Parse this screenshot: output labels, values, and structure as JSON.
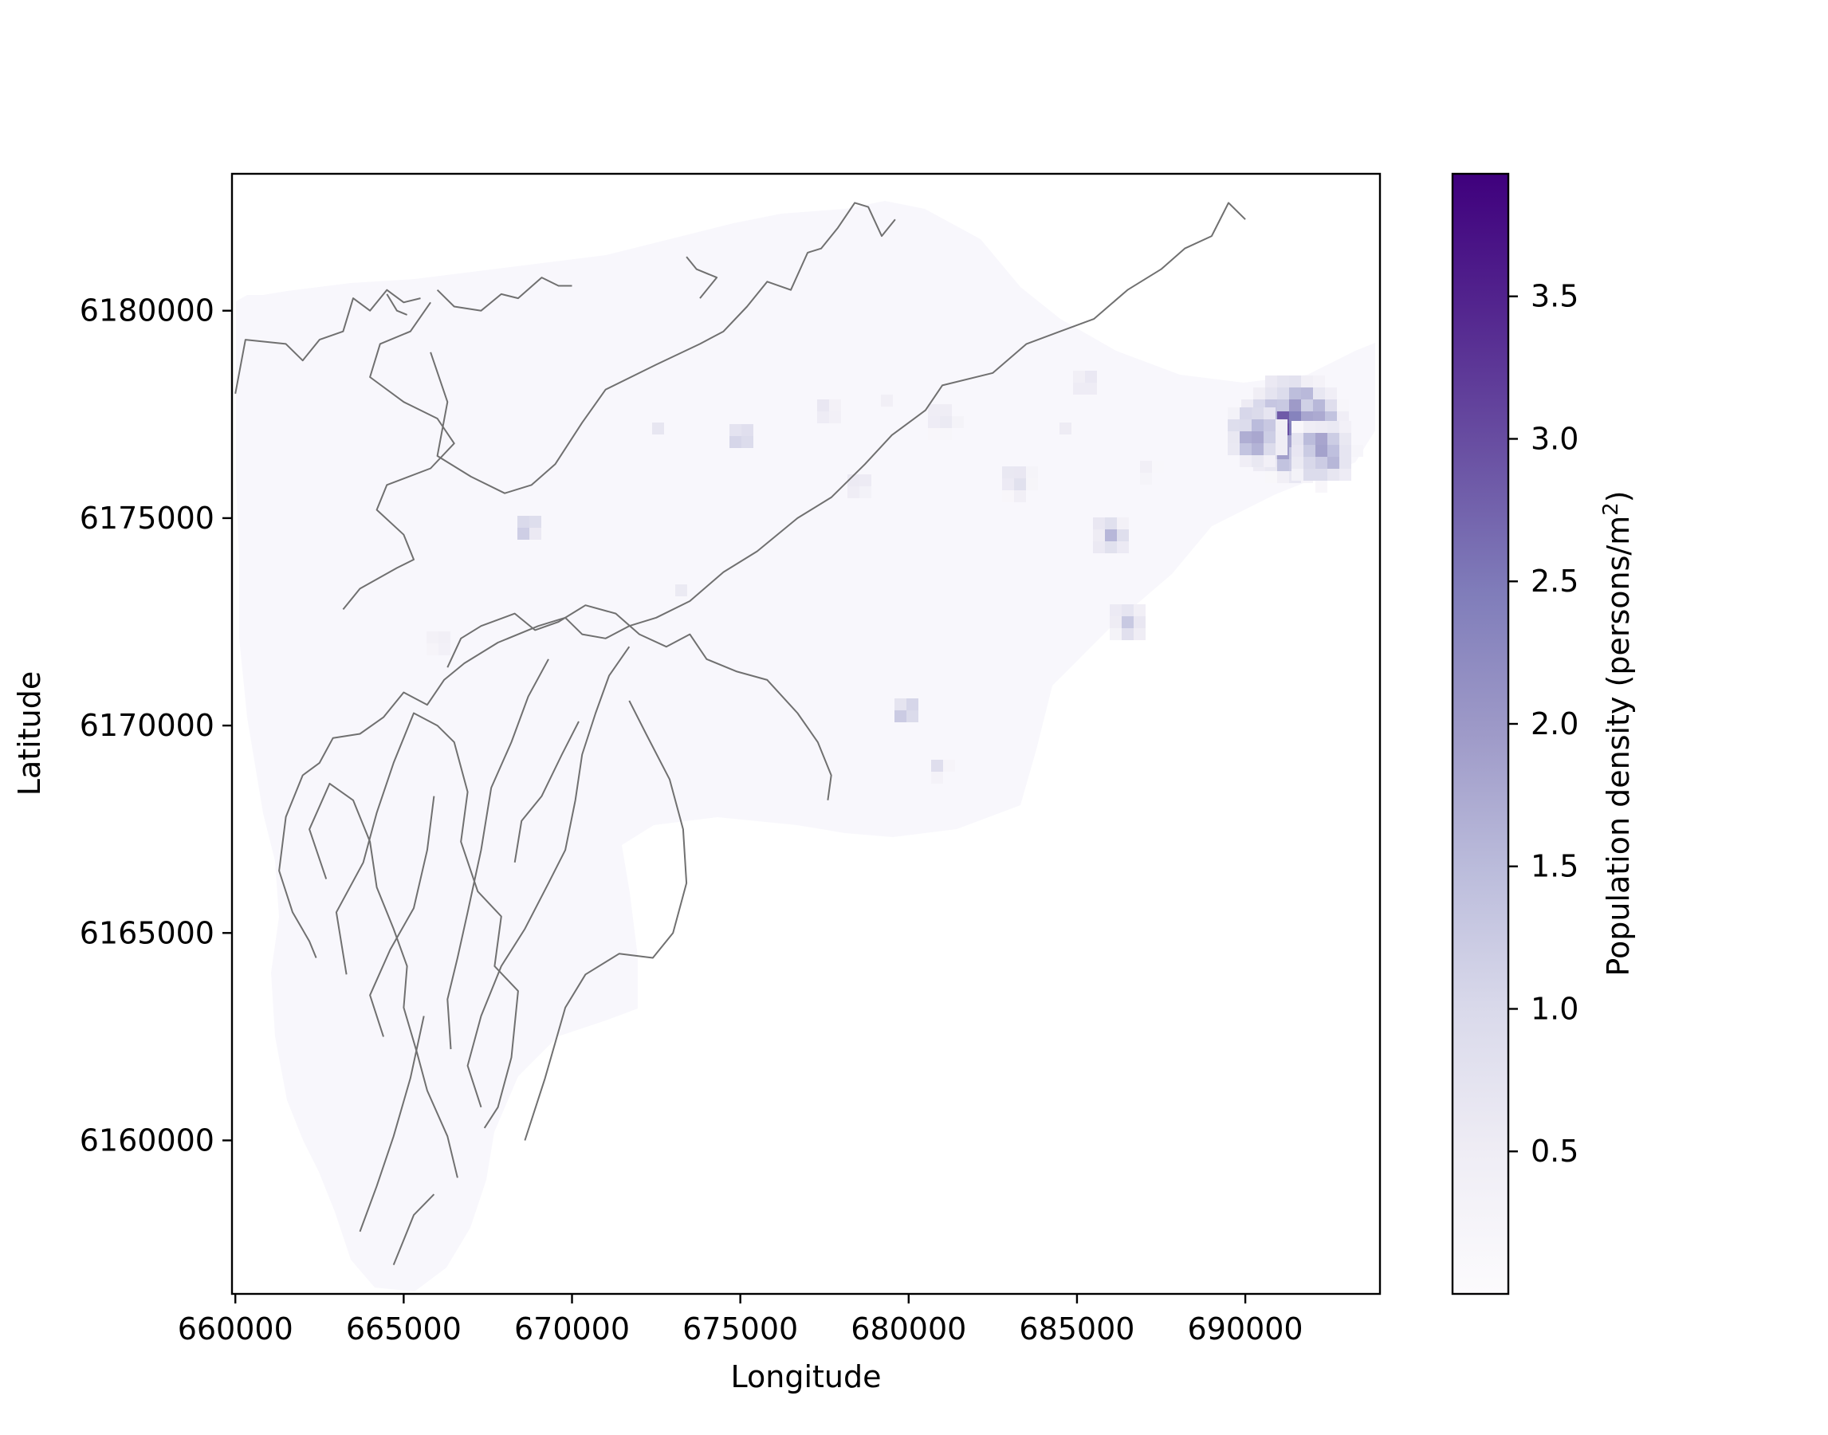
{
  "chart_data": {
    "type": "heatmap",
    "title": "",
    "xlabel": "Longitude",
    "ylabel": "Latitude",
    "xlim": [
      659900,
      694000
    ],
    "ylim": [
      6156300,
      6183300
    ],
    "x_ticks": [
      660000,
      665000,
      670000,
      675000,
      680000,
      685000,
      690000
    ],
    "x_tick_labels": [
      "660000",
      "665000",
      "670000",
      "675000",
      "680000",
      "685000",
      "690000"
    ],
    "y_ticks": [
      6160000,
      6165000,
      6170000,
      6175000,
      6180000
    ],
    "y_tick_labels": [
      "6160000",
      "6165000",
      "6170000",
      "6175000",
      "6180000"
    ],
    "grid": false,
    "colorbar": {
      "label_prefix": "Population density (persons/m",
      "label_sup": "2",
      "label_suffix": ")",
      "vmin": 0.0,
      "vmax": 3.93,
      "colormap": "Purples",
      "ticks": [
        0.5,
        1.0,
        1.5,
        2.0,
        2.5,
        3.0,
        3.5
      ],
      "tick_labels": [
        "0.5",
        "1.0",
        "1.5",
        "2.0",
        "2.5",
        "3.0",
        "3.5"
      ],
      "color_low": "#fcfbfd",
      "color_high": "#3f007d"
    },
    "density_hotspots": [
      {
        "x": 691400,
        "y": 6177200,
        "value": 3.2,
        "radius": 1700
      },
      {
        "x": 690300,
        "y": 6177000,
        "value": 2.5,
        "radius": 1000
      },
      {
        "x": 692300,
        "y": 6176600,
        "value": 2.4,
        "radius": 1100
      },
      {
        "x": 668700,
        "y": 6174800,
        "value": 2.0,
        "radius": 500
      },
      {
        "x": 675000,
        "y": 6177000,
        "value": 1.7,
        "radius": 500
      },
      {
        "x": 679900,
        "y": 6170400,
        "value": 1.9,
        "radius": 500
      },
      {
        "x": 686000,
        "y": 6174600,
        "value": 1.5,
        "radius": 700
      },
      {
        "x": 686500,
        "y": 6172500,
        "value": 1.4,
        "radius": 700
      },
      {
        "x": 683200,
        "y": 6175900,
        "value": 1.3,
        "radius": 600
      },
      {
        "x": 681000,
        "y": 6177400,
        "value": 1.1,
        "radius": 600
      },
      {
        "x": 678500,
        "y": 6175800,
        "value": 1.1,
        "radius": 500
      },
      {
        "x": 672500,
        "y": 6177200,
        "value": 1.2,
        "radius": 300
      },
      {
        "x": 685200,
        "y": 6178300,
        "value": 1.0,
        "radius": 500
      },
      {
        "x": 687100,
        "y": 6176200,
        "value": 0.9,
        "radius": 400
      },
      {
        "x": 677600,
        "y": 6177600,
        "value": 0.9,
        "radius": 500
      },
      {
        "x": 680900,
        "y": 6169000,
        "value": 1.0,
        "radius": 400
      },
      {
        "x": 673200,
        "y": 6173300,
        "value": 0.8,
        "radius": 300
      },
      {
        "x": 684600,
        "y": 6177200,
        "value": 0.8,
        "radius": 300
      },
      {
        "x": 666000,
        "y": 6172000,
        "value": 0.7,
        "radius": 500
      },
      {
        "x": 679400,
        "y": 6177800,
        "value": 0.7,
        "radius": 400
      }
    ],
    "contours": [
      [
        [
          660000,
          6178000
        ],
        [
          660300,
          6179300
        ],
        [
          661500,
          6179200
        ],
        [
          662000,
          6178800
        ],
        [
          662500,
          6179300
        ],
        [
          663200,
          6179500
        ],
        [
          663500,
          6180300
        ],
        [
          664000,
          6180000
        ],
        [
          664500,
          6180500
        ],
        [
          665000,
          6180200
        ],
        [
          665500,
          6180300
        ]
      ],
      [
        [
          665800,
          6180200
        ],
        [
          665200,
          6179500
        ],
        [
          664300,
          6179200
        ],
        [
          664000,
          6178400
        ],
        [
          665000,
          6177800
        ],
        [
          666000,
          6177400
        ],
        [
          666500,
          6176800
        ],
        [
          665800,
          6176200
        ],
        [
          664500,
          6175800
        ],
        [
          664200,
          6175200
        ],
        [
          665000,
          6174600
        ],
        [
          665300,
          6174000
        ],
        [
          664800,
          6173800
        ],
        [
          663700,
          6173300
        ],
        [
          663200,
          6172800
        ]
      ],
      [
        [
          666000,
          6180500
        ],
        [
          666500,
          6180100
        ],
        [
          667300,
          6180000
        ],
        [
          667900,
          6180400
        ],
        [
          668400,
          6180300
        ],
        [
          669100,
          6180800
        ],
        [
          669600,
          6180600
        ],
        [
          670000,
          6180600
        ]
      ],
      [
        [
          690000,
          6182200
        ],
        [
          689500,
          6182600
        ],
        [
          689000,
          6181800
        ],
        [
          688200,
          6181500
        ],
        [
          687500,
          6181000
        ],
        [
          686500,
          6180500
        ],
        [
          685500,
          6179800
        ],
        [
          684500,
          6179500
        ],
        [
          683500,
          6179200
        ],
        [
          682500,
          6178500
        ],
        [
          681000,
          6178200
        ],
        [
          680500,
          6177600
        ],
        [
          679500,
          6177000
        ],
        [
          678700,
          6176300
        ],
        [
          677700,
          6175500
        ],
        [
          676700,
          6175000
        ],
        [
          675500,
          6174200
        ],
        [
          674500,
          6173700
        ],
        [
          673500,
          6173000
        ],
        [
          672500,
          6172600
        ],
        [
          671700,
          6172400
        ],
        [
          671000,
          6172100
        ],
        [
          670300,
          6172200
        ],
        [
          669800,
          6172600
        ],
        [
          669000,
          6172400
        ],
        [
          667800,
          6172000
        ],
        [
          666800,
          6171500
        ],
        [
          666200,
          6171100
        ],
        [
          665700,
          6170500
        ],
        [
          665000,
          6170800
        ],
        [
          664400,
          6170200
        ],
        [
          663700,
          6169800
        ],
        [
          662900,
          6169700
        ],
        [
          662500,
          6169100
        ],
        [
          662000,
          6168800
        ],
        [
          661500,
          6167800
        ],
        [
          661300,
          6166500
        ],
        [
          661700,
          6165500
        ],
        [
          662200,
          6164800
        ],
        [
          662400,
          6164400
        ]
      ],
      [
        [
          666300,
          6171400
        ],
        [
          666700,
          6172100
        ],
        [
          667300,
          6172400
        ],
        [
          668300,
          6172700
        ],
        [
          668900,
          6172300
        ],
        [
          669600,
          6172500
        ],
        [
          670400,
          6172900
        ],
        [
          671300,
          6172700
        ],
        [
          672000,
          6172200
        ],
        [
          672800,
          6171900
        ],
        [
          673500,
          6172200
        ],
        [
          674000,
          6171600
        ],
        [
          674900,
          6171300
        ],
        [
          675800,
          6171100
        ],
        [
          676700,
          6170300
        ],
        [
          677300,
          6169600
        ],
        [
          677700,
          6168800
        ],
        [
          677600,
          6168200
        ]
      ],
      [
        [
          665800,
          6179000
        ],
        [
          666300,
          6177800
        ],
        [
          666000,
          6176500
        ],
        [
          667000,
          6176000
        ],
        [
          668000,
          6175600
        ],
        [
          668800,
          6175800
        ],
        [
          669500,
          6176300
        ],
        [
          670300,
          6177300
        ],
        [
          671000,
          6178100
        ],
        [
          672500,
          6178700
        ],
        [
          673800,
          6179200
        ],
        [
          674500,
          6179500
        ],
        [
          675200,
          6180100
        ],
        [
          675800,
          6180700
        ],
        [
          676500,
          6180500
        ],
        [
          677000,
          6181400
        ],
        [
          677400,
          6181500
        ],
        [
          677900,
          6182000
        ],
        [
          678400,
          6182600
        ],
        [
          678800,
          6182500
        ],
        [
          679200,
          6181800
        ],
        [
          679600,
          6182200
        ]
      ],
      [
        [
          665100,
          6179900
        ],
        [
          664800,
          6180000
        ],
        [
          664500,
          6180400
        ]
      ],
      [
        [
          673400,
          6181300
        ],
        [
          673700,
          6181000
        ],
        [
          674300,
          6180800
        ],
        [
          673800,
          6180300
        ]
      ],
      [
        [
          663300,
          6164000
        ],
        [
          663000,
          6165500
        ],
        [
          663800,
          6166700
        ],
        [
          664200,
          6167900
        ],
        [
          664700,
          6169100
        ],
        [
          665300,
          6170300
        ],
        [
          666000,
          6170000
        ],
        [
          666500,
          6169600
        ],
        [
          666900,
          6168400
        ],
        [
          666700,
          6167200
        ],
        [
          667200,
          6166000
        ],
        [
          667900,
          6165400
        ],
        [
          667700,
          6164200
        ],
        [
          668400,
          6163600
        ],
        [
          668200,
          6162000
        ],
        [
          667800,
          6160800
        ],
        [
          667400,
          6160300
        ]
      ],
      [
        [
          662700,
          6166300
        ],
        [
          662200,
          6167500
        ],
        [
          662800,
          6168600
        ],
        [
          663500,
          6168200
        ],
        [
          664000,
          6167200
        ],
        [
          664200,
          6166100
        ],
        [
          664700,
          6165100
        ],
        [
          665100,
          6164200
        ],
        [
          665000,
          6163200
        ],
        [
          665400,
          6162100
        ],
        [
          665700,
          6161200
        ],
        [
          666300,
          6160100
        ],
        [
          666600,
          6159100
        ]
      ],
      [
        [
          664400,
          6162500
        ],
        [
          664000,
          6163500
        ],
        [
          664600,
          6164600
        ],
        [
          665300,
          6165600
        ],
        [
          665700,
          6167000
        ],
        [
          665900,
          6168300
        ]
      ],
      [
        [
          666400,
          6162200
        ],
        [
          666300,
          6163400
        ],
        [
          666600,
          6164400
        ],
        [
          666900,
          6165500
        ],
        [
          667300,
          6167000
        ],
        [
          667600,
          6168500
        ],
        [
          668200,
          6169600
        ],
        [
          668700,
          6170700
        ],
        [
          669300,
          6171600
        ]
      ],
      [
        [
          667300,
          6160800
        ],
        [
          666900,
          6161800
        ],
        [
          667300,
          6163000
        ],
        [
          667900,
          6164200
        ],
        [
          668600,
          6165100
        ],
        [
          669300,
          6166200
        ],
        [
          669800,
          6167000
        ],
        [
          670100,
          6168200
        ],
        [
          670300,
          6169300
        ],
        [
          670700,
          6170300
        ],
        [
          671100,
          6171200
        ],
        [
          671700,
          6171900
        ]
      ],
      [
        [
          668600,
          6160000
        ],
        [
          669200,
          6161500
        ],
        [
          669800,
          6163200
        ],
        [
          670400,
          6164000
        ],
        [
          671400,
          6164500
        ],
        [
          672400,
          6164400
        ],
        [
          673000,
          6165000
        ],
        [
          673400,
          6166200
        ],
        [
          673300,
          6167500
        ],
        [
          672900,
          6168700
        ],
        [
          672200,
          6169800
        ],
        [
          671700,
          6170600
        ]
      ],
      [
        [
          663700,
          6157800
        ],
        [
          664200,
          6158900
        ],
        [
          664700,
          6160100
        ],
        [
          665200,
          6161500
        ],
        [
          665600,
          6163000
        ]
      ],
      [
        [
          664700,
          6157000
        ],
        [
          665000,
          6157600
        ],
        [
          665300,
          6158200
        ],
        [
          665900,
          6158700
        ]
      ],
      [
        [
          668300,
          6166700
        ],
        [
          668500,
          6167700
        ],
        [
          669100,
          6168300
        ],
        [
          669700,
          6169300
        ],
        [
          670200,
          6170100
        ]
      ]
    ]
  }
}
